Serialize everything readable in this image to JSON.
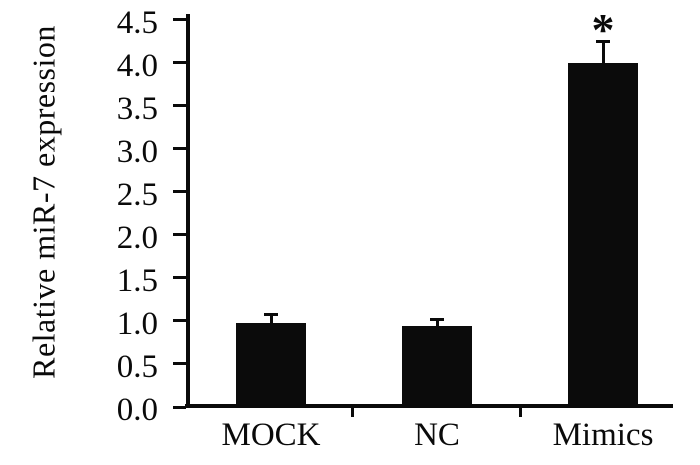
{
  "figure": {
    "background": "#ffffff",
    "ink_color": "#0a0a0a"
  },
  "chart_data": {
    "type": "bar",
    "title": "",
    "ylabel": "Relative miR-7 expression",
    "xlabel": "",
    "categories": [
      "MOCK",
      "NC",
      "Mimics"
    ],
    "values": [
      0.98,
      0.94,
      4.0
    ],
    "error_plus": [
      0.09,
      0.08,
      0.25
    ],
    "significance": [
      "",
      "",
      "*"
    ],
    "ylim": [
      0.0,
      4.5
    ],
    "ytick_step": 0.5,
    "ytick_labels": [
      "0.0",
      "0.5",
      "1.0",
      "1.5",
      "2.0",
      "2.5",
      "3.0",
      "3.5",
      "4.0",
      "4.5"
    ],
    "bar_color": "#0b0b0b",
    "error_bar_style": "upper-cap",
    "grid": false,
    "legend": null
  }
}
